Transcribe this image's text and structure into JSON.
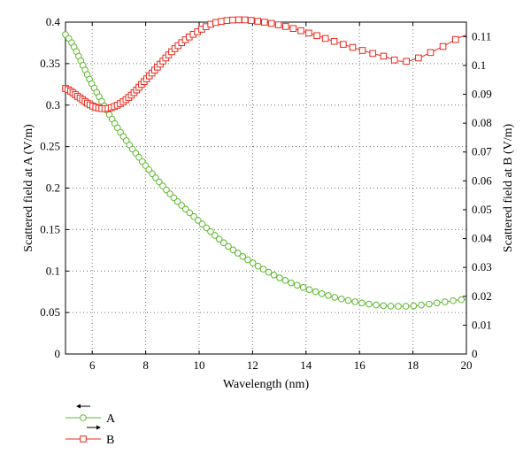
{
  "chart_data": {
    "type": "line",
    "xlabel": "Wavelength (nm)",
    "ylabel_left": "Scattered field at A (V/m)",
    "ylabel_right": "Scattered field at B (V/m)",
    "xlim": [
      5,
      20
    ],
    "ylim_left": [
      0,
      0.4
    ],
    "ylim_right": [
      0,
      0.115
    ],
    "x_ticks": [
      6,
      8,
      10,
      12,
      14,
      16,
      18,
      20
    ],
    "y_left_ticks": [
      0,
      0.05,
      0.1,
      0.15,
      0.2,
      0.25,
      0.3,
      0.35,
      0.4
    ],
    "y_right_ticks": [
      0,
      0.01,
      0.02,
      0.03,
      0.04,
      0.05,
      0.06,
      0.07,
      0.08,
      0.09,
      0.1,
      0.11
    ],
    "grid": true,
    "legend_placement": "bottom-left, below plot",
    "series": [
      {
        "name": "A",
        "axis": "left",
        "color": "#5cb82e",
        "marker": "circle",
        "x": [
          5,
          6,
          7,
          8,
          9,
          10,
          11,
          12,
          13,
          14,
          15,
          16,
          17,
          18,
          19,
          20
        ],
        "y": [
          0.385,
          0.325,
          0.27,
          0.227,
          0.19,
          0.16,
          0.132,
          0.11,
          0.092,
          0.079,
          0.069,
          0.062,
          0.058,
          0.058,
          0.062,
          0.066
        ]
      },
      {
        "name": "B",
        "axis": "right",
        "color": "#e8291c",
        "marker": "square",
        "x": [
          5,
          5.5,
          6,
          6.5,
          7,
          7.5,
          8,
          8.5,
          9,
          9.5,
          10,
          10.5,
          11,
          11.5,
          12,
          13,
          14,
          15,
          16,
          17,
          17.5,
          18,
          19,
          20
        ],
        "y": [
          0.092,
          0.089,
          0.086,
          0.085,
          0.0865,
          0.09,
          0.095,
          0.1,
          0.105,
          0.109,
          0.112,
          0.1145,
          0.1155,
          0.1158,
          0.1155,
          0.114,
          0.1115,
          0.1085,
          0.1055,
          0.103,
          0.1015,
          0.102,
          0.106,
          0.1105
        ]
      }
    ]
  }
}
